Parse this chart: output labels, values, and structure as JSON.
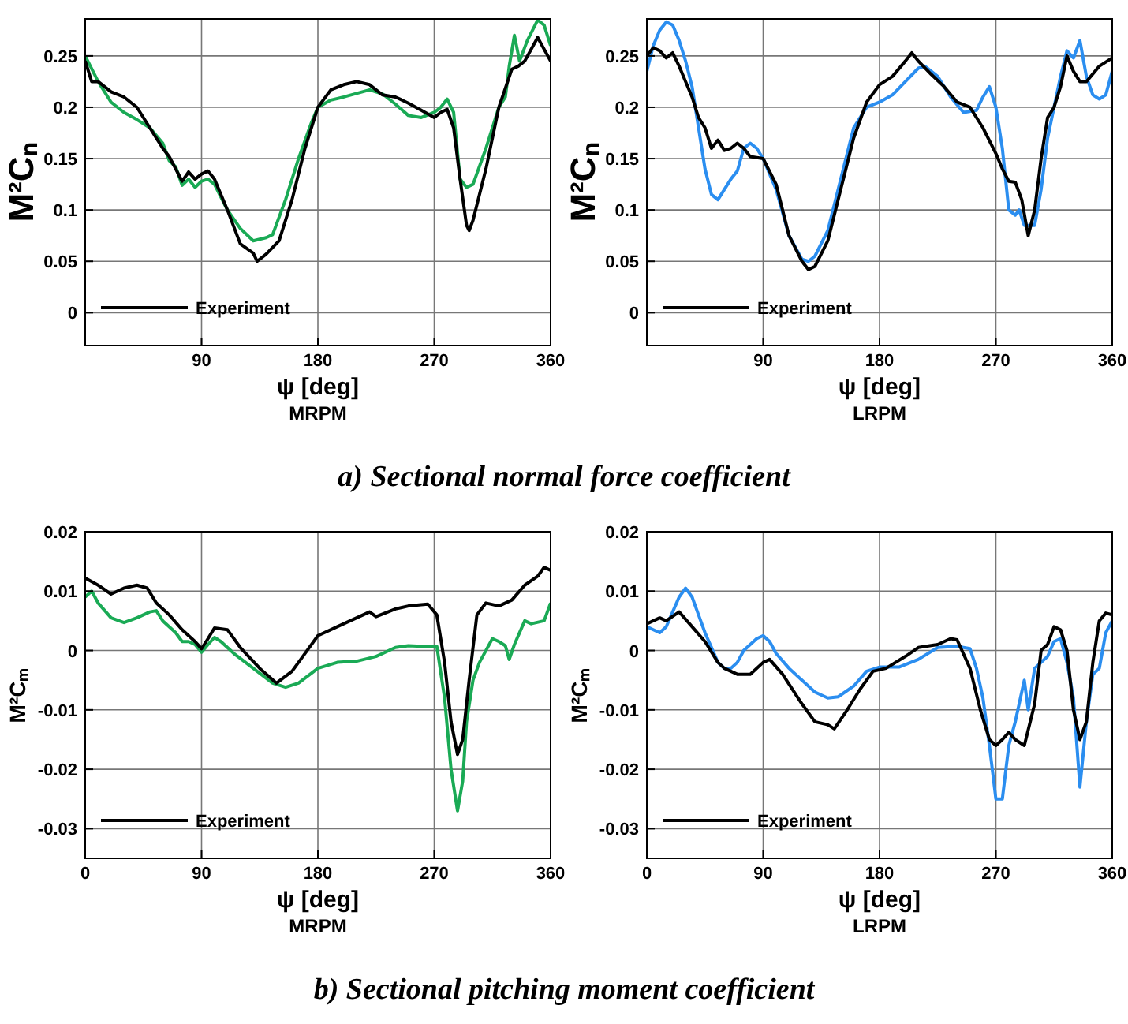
{
  "chart_data": [
    {
      "type": "line",
      "xlabel": "ψ [deg]",
      "ylabel": "M²Cₙ",
      "subtitle": "MRPM",
      "annotations": [
        "a) Sectional normal force coefficient"
      ],
      "xlim": [
        0,
        360
      ],
      "xticks": [
        90,
        180,
        270,
        360
      ],
      "ylim": [
        -0.032,
        0.286
      ],
      "yticks": [
        0,
        0.05,
        0.1,
        0.15,
        0.2,
        0.25
      ],
      "grid": true,
      "legend": "bottom left",
      "series": [
        {
          "color": "#1aaa55",
          "x": [
            0,
            10,
            20,
            30,
            40,
            50,
            60,
            65,
            70,
            75,
            80,
            85,
            90,
            95,
            100,
            110,
            120,
            130,
            140,
            145,
            155,
            165,
            175,
            180,
            190,
            200,
            220,
            230,
            240,
            250,
            260,
            270,
            275,
            280,
            285,
            290,
            295,
            300,
            310,
            320,
            325,
            328,
            332,
            336,
            342,
            350,
            355,
            360
          ],
          "values": [
            0.25,
            0.225,
            0.205,
            0.195,
            0.188,
            0.18,
            0.165,
            0.148,
            0.142,
            0.124,
            0.13,
            0.122,
            0.128,
            0.13,
            0.125,
            0.1,
            0.082,
            0.07,
            0.073,
            0.076,
            0.11,
            0.15,
            0.185,
            0.2,
            0.207,
            0.21,
            0.217,
            0.213,
            0.203,
            0.192,
            0.19,
            0.195,
            0.2,
            0.208,
            0.195,
            0.13,
            0.122,
            0.125,
            0.16,
            0.2,
            0.21,
            0.24,
            0.27,
            0.245,
            0.265,
            0.285,
            0.28,
            0.26
          ]
        },
        {
          "name": "Experiment",
          "color": "#000000",
          "x": [
            0,
            5,
            10,
            20,
            30,
            40,
            50,
            60,
            65,
            70,
            75,
            80,
            85,
            90,
            95,
            100,
            110,
            120,
            130,
            133,
            140,
            150,
            160,
            170,
            180,
            190,
            200,
            210,
            220,
            230,
            240,
            250,
            260,
            270,
            275,
            280,
            285,
            290,
            295,
            297,
            300,
            310,
            320,
            330,
            335,
            340,
            350,
            360
          ],
          "values": [
            0.245,
            0.225,
            0.225,
            0.215,
            0.21,
            0.2,
            0.18,
            0.16,
            0.152,
            0.14,
            0.128,
            0.137,
            0.13,
            0.135,
            0.138,
            0.13,
            0.1,
            0.067,
            0.058,
            0.05,
            0.057,
            0.07,
            0.11,
            0.16,
            0.2,
            0.217,
            0.222,
            0.225,
            0.222,
            0.212,
            0.21,
            0.204,
            0.197,
            0.19,
            0.195,
            0.198,
            0.18,
            0.13,
            0.085,
            0.08,
            0.09,
            0.14,
            0.2,
            0.237,
            0.24,
            0.245,
            0.268,
            0.245
          ]
        }
      ]
    },
    {
      "type": "line",
      "xlabel": "ψ [deg]",
      "ylabel": "M²Cₙ",
      "subtitle": "LRPM",
      "xlim": [
        0,
        360
      ],
      "xticks": [
        90,
        180,
        270,
        360
      ],
      "ylim": [
        -0.032,
        0.286
      ],
      "yticks": [
        0,
        0.05,
        0.1,
        0.15,
        0.2,
        0.25
      ],
      "grid": true,
      "legend": "bottom left",
      "series": [
        {
          "color": "#2b8ef0",
          "x": [
            0,
            5,
            10,
            15,
            20,
            25,
            30,
            35,
            40,
            45,
            50,
            55,
            60,
            65,
            70,
            75,
            80,
            85,
            90,
            100,
            110,
            120,
            125,
            130,
            140,
            150,
            160,
            170,
            180,
            190,
            200,
            210,
            215,
            225,
            235,
            245,
            255,
            260,
            265,
            270,
            275,
            280,
            285,
            288,
            292,
            295,
            300,
            305,
            310,
            320,
            325,
            330,
            335,
            340,
            345,
            350,
            355,
            360
          ],
          "values": [
            0.235,
            0.26,
            0.275,
            0.283,
            0.28,
            0.265,
            0.245,
            0.22,
            0.18,
            0.14,
            0.115,
            0.11,
            0.12,
            0.13,
            0.138,
            0.16,
            0.165,
            0.16,
            0.15,
            0.12,
            0.075,
            0.052,
            0.05,
            0.055,
            0.08,
            0.13,
            0.18,
            0.2,
            0.205,
            0.212,
            0.225,
            0.238,
            0.24,
            0.23,
            0.21,
            0.195,
            0.197,
            0.21,
            0.22,
            0.2,
            0.16,
            0.1,
            0.095,
            0.1,
            0.085,
            0.085,
            0.085,
            0.12,
            0.17,
            0.23,
            0.255,
            0.248,
            0.265,
            0.23,
            0.212,
            0.208,
            0.212,
            0.235
          ]
        },
        {
          "name": "Experiment",
          "color": "#000000",
          "x": [
            0,
            5,
            10,
            15,
            20,
            25,
            30,
            35,
            40,
            45,
            50,
            55,
            60,
            65,
            70,
            75,
            80,
            90,
            100,
            110,
            120,
            125,
            130,
            140,
            150,
            160,
            170,
            180,
            190,
            200,
            205,
            210,
            220,
            230,
            240,
            250,
            260,
            270,
            275,
            280,
            285,
            290,
            295,
            300,
            305,
            310,
            315,
            320,
            325,
            330,
            335,
            340,
            350,
            360
          ],
          "values": [
            0.25,
            0.258,
            0.255,
            0.248,
            0.253,
            0.24,
            0.225,
            0.21,
            0.19,
            0.18,
            0.16,
            0.168,
            0.158,
            0.16,
            0.165,
            0.16,
            0.152,
            0.15,
            0.125,
            0.075,
            0.05,
            0.042,
            0.045,
            0.07,
            0.12,
            0.17,
            0.205,
            0.222,
            0.23,
            0.245,
            0.253,
            0.245,
            0.232,
            0.22,
            0.205,
            0.2,
            0.18,
            0.155,
            0.14,
            0.128,
            0.127,
            0.11,
            0.075,
            0.1,
            0.15,
            0.19,
            0.2,
            0.22,
            0.25,
            0.235,
            0.225,
            0.225,
            0.24,
            0.248
          ]
        }
      ]
    },
    {
      "type": "line",
      "xlabel": "ψ [deg]",
      "ylabel": "M²Cₘ",
      "subtitle": "MRPM",
      "annotations": [
        "b) Sectional pitching moment coefficient"
      ],
      "xlim": [
        0,
        360
      ],
      "xticks": [
        0,
        90,
        180,
        270,
        360
      ],
      "ylim": [
        -0.035,
        0.02
      ],
      "yticks": [
        -0.03,
        -0.02,
        -0.01,
        0,
        0.01,
        0.02
      ],
      "grid": true,
      "legend": "bottom left",
      "series": [
        {
          "color": "#1aaa55",
          "x": [
            0,
            5,
            10,
            20,
            30,
            40,
            50,
            55,
            60,
            65,
            70,
            75,
            80,
            85,
            90,
            95,
            100,
            105,
            115,
            130,
            145,
            155,
            165,
            180,
            195,
            210,
            225,
            240,
            250,
            260,
            272,
            278,
            283,
            288,
            292,
            295,
            300,
            305,
            315,
            320,
            325,
            328,
            332,
            340,
            345,
            355,
            360
          ],
          "values": [
            0.009,
            0.01,
            0.008,
            0.0055,
            0.0047,
            0.0055,
            0.0065,
            0.0067,
            0.005,
            0.004,
            0.003,
            0.0015,
            0.0015,
            0.001,
            -0.0003,
            0.001,
            0.0022,
            0.0015,
            -0.0005,
            -0.003,
            -0.0055,
            -0.0062,
            -0.0055,
            -0.003,
            -0.002,
            -0.0018,
            -0.001,
            0.0005,
            0.0008,
            0.0007,
            0.0007,
            -0.008,
            -0.02,
            -0.027,
            -0.022,
            -0.012,
            -0.005,
            -0.002,
            0.002,
            0.0015,
            0.0008,
            -0.0015,
            0.001,
            0.005,
            0.0045,
            0.005,
            0.008
          ]
        },
        {
          "name": "Experiment",
          "color": "#000000",
          "x": [
            0,
            10,
            20,
            30,
            40,
            48,
            55,
            65,
            75,
            85,
            90,
            95,
            100,
            110,
            120,
            135,
            148,
            160,
            170,
            180,
            195,
            210,
            220,
            225,
            240,
            250,
            265,
            272,
            278,
            283,
            288,
            292,
            297,
            303,
            310,
            320,
            330,
            340,
            350,
            355,
            360
          ],
          "values": [
            0.0122,
            0.011,
            0.0095,
            0.0105,
            0.011,
            0.0105,
            0.008,
            0.006,
            0.0035,
            0.0015,
            0.0003,
            0.002,
            0.0038,
            0.0035,
            0.0005,
            -0.003,
            -0.0055,
            -0.0035,
            -0.0005,
            0.0025,
            0.004,
            0.0055,
            0.0065,
            0.0057,
            0.007,
            0.0075,
            0.0078,
            0.006,
            -0.002,
            -0.012,
            -0.0175,
            -0.015,
            -0.005,
            0.006,
            0.008,
            0.0075,
            0.0085,
            0.011,
            0.0125,
            0.014,
            0.0135
          ]
        }
      ]
    },
    {
      "type": "line",
      "xlabel": "ψ [deg]",
      "ylabel": "M²Cₘ",
      "subtitle": "LRPM",
      "xlim": [
        0,
        360
      ],
      "xticks": [
        0,
        90,
        180,
        270,
        360
      ],
      "ylim": [
        -0.035,
        0.02
      ],
      "yticks": [
        -0.03,
        -0.02,
        -0.01,
        0,
        0.01,
        0.02
      ],
      "grid": true,
      "legend": "bottom left",
      "series": [
        {
          "color": "#2b8ef0",
          "x": [
            0,
            5,
            10,
            15,
            20,
            25,
            30,
            35,
            40,
            45,
            50,
            55,
            60,
            65,
            70,
            75,
            80,
            85,
            90,
            95,
            100,
            110,
            120,
            130,
            140,
            148,
            160,
            170,
            180,
            195,
            210,
            225,
            240,
            250,
            255,
            260,
            265,
            270,
            275,
            280,
            285,
            288,
            292,
            295,
            300,
            305,
            310,
            315,
            320,
            325,
            330,
            335,
            340,
            345,
            350,
            355,
            360
          ],
          "values": [
            0.004,
            0.0035,
            0.003,
            0.004,
            0.0065,
            0.009,
            0.0105,
            0.009,
            0.006,
            0.003,
            0.0005,
            -0.002,
            -0.003,
            -0.003,
            -0.002,
            0,
            0.001,
            0.002,
            0.0025,
            0.0015,
            -0.0005,
            -0.003,
            -0.005,
            -0.007,
            -0.008,
            -0.0078,
            -0.006,
            -0.0035,
            -0.0028,
            -0.0028,
            -0.0015,
            0.0005,
            0.0007,
            0.0003,
            -0.003,
            -0.008,
            -0.016,
            -0.025,
            -0.025,
            -0.016,
            -0.012,
            -0.009,
            -0.005,
            -0.01,
            -0.003,
            -0.002,
            -0.001,
            0.0015,
            0.002,
            -0.002,
            -0.008,
            -0.023,
            -0.012,
            -0.004,
            -0.003,
            0.003,
            0.005
          ]
        },
        {
          "name": "Experiment",
          "color": "#000000",
          "x": [
            0,
            5,
            10,
            15,
            25,
            35,
            45,
            55,
            60,
            70,
            80,
            90,
            95,
            105,
            120,
            130,
            140,
            145,
            155,
            165,
            175,
            185,
            200,
            210,
            225,
            235,
            240,
            250,
            258,
            265,
            270,
            275,
            280,
            285,
            292,
            300,
            305,
            310,
            315,
            320,
            325,
            330,
            335,
            340,
            345,
            350,
            355,
            360
          ],
          "values": [
            0.0045,
            0.005,
            0.0055,
            0.005,
            0.0065,
            0.004,
            0.0015,
            -0.002,
            -0.003,
            -0.004,
            -0.004,
            -0.002,
            -0.0015,
            -0.004,
            -0.009,
            -0.012,
            -0.0125,
            -0.0132,
            -0.01,
            -0.0065,
            -0.0035,
            -0.003,
            -0.001,
            0.0005,
            0.001,
            0.002,
            0.0018,
            -0.003,
            -0.01,
            -0.015,
            -0.016,
            -0.015,
            -0.0138,
            -0.015,
            -0.016,
            -0.009,
            0,
            0.001,
            0.004,
            0.0035,
            0,
            -0.01,
            -0.015,
            -0.012,
            -0.002,
            0.005,
            0.0063,
            0.006
          ]
        }
      ]
    }
  ]
}
